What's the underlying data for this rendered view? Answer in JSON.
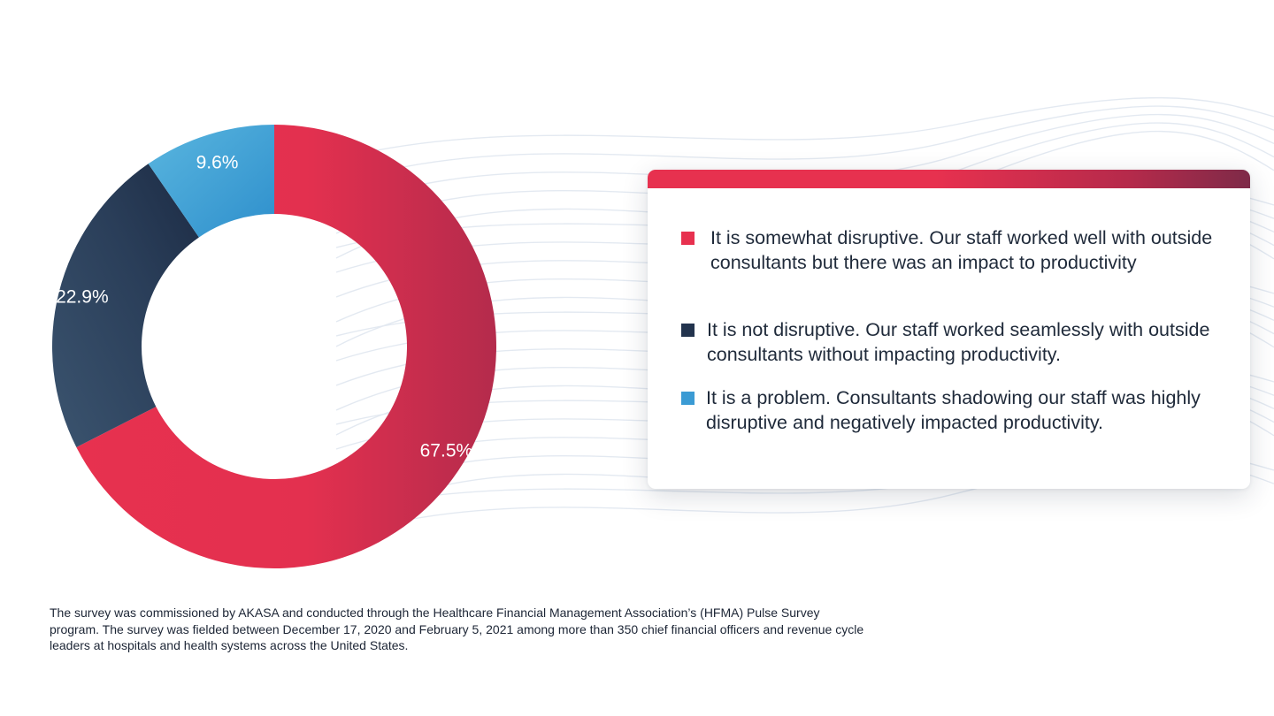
{
  "colors": {
    "somewhat": "#e7314f",
    "not": "#22334d",
    "problem": "#3b9bd4",
    "label": "#ffffff"
  },
  "chart_data": {
    "type": "pie",
    "variant": "donut",
    "categories": [
      "It is somewhat disruptive. Our staff worked well with outside consultants but there was an impact to productivity",
      "It is not disruptive. Our staff worked seamlessly with outside consultants without impacting productivity.",
      "It is a problem. Consultants shadowing our staff was highly disruptive and negatively impacted productivity."
    ],
    "values": [
      67.5,
      22.9,
      9.6
    ],
    "labels": [
      "67.5%",
      "22.9%",
      "9.6%"
    ],
    "title": "",
    "legend_position": "right"
  },
  "legend": {
    "items": [
      {
        "color": "#e7314f",
        "text": "It is somewhat disruptive. Our staff worked well with outside consultants but there was an impact to productivity"
      },
      {
        "color": "#22334d",
        "text": "It is not disruptive. Our staff worked seamlessly with outside consultants without impacting productivity."
      },
      {
        "color": "#3b9bd4",
        "text": "It is a problem. Consultants shadowing our staff was highly disruptive and negatively impacted productivity."
      }
    ]
  },
  "footnote": "The survey was commissioned by AKASA and conducted through the Healthcare Financial Management Association’s (HFMA) Pulse Survey program. The survey was fielded between December 17, 2020 and February 5, 2021 among more than 350 chief financial officers and revenue cycle leaders at hospitals and health systems across the United States."
}
